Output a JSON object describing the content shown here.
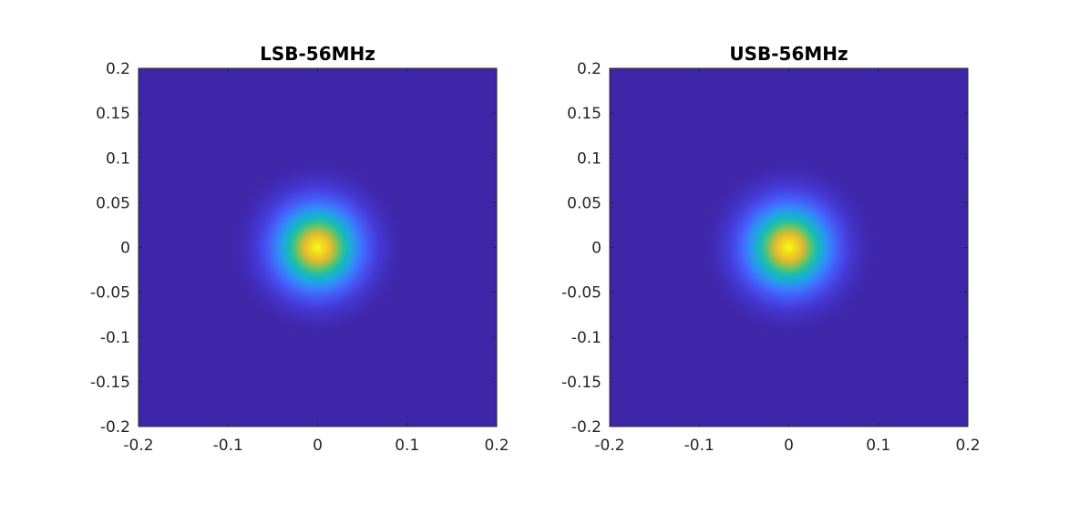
{
  "chart_data": [
    {
      "type": "heatmap",
      "title": "LSB-56MHz",
      "xlim": [
        -0.2,
        0.2
      ],
      "ylim": [
        -0.2,
        0.2
      ],
      "xticks": [
        -0.2,
        -0.1,
        0,
        0.1,
        0.2
      ],
      "xtick_labels": [
        "-0.2",
        "-0.1",
        "0",
        "0.1",
        "0.2"
      ],
      "yticks": [
        0.2,
        0.15,
        0.1,
        0.05,
        0,
        -0.05,
        -0.1,
        -0.15,
        -0.2
      ],
      "ytick_labels": [
        "0.2",
        "0.15",
        "0.1",
        "0.05",
        "0",
        "-0.05",
        "-0.1",
        "-0.15",
        "-0.2"
      ],
      "colormap": "parula",
      "peak": {
        "x": 0,
        "y": 0
      },
      "spot_sigma": 0.032,
      "grid": false
    },
    {
      "type": "heatmap",
      "title": "USB-56MHz",
      "xlim": [
        -0.2,
        0.2
      ],
      "ylim": [
        -0.2,
        0.2
      ],
      "xticks": [
        -0.2,
        -0.1,
        0,
        0.1,
        0.2
      ],
      "xtick_labels": [
        "-0.2",
        "-0.1",
        "0",
        "0.1",
        "0.2"
      ],
      "yticks": [
        0.2,
        0.15,
        0.1,
        0.05,
        0,
        -0.05,
        -0.1,
        -0.15,
        -0.2
      ],
      "ytick_labels": [
        "0.2",
        "0.15",
        "0.1",
        "0.05",
        "0",
        "-0.05",
        "-0.1",
        "-0.15",
        "-0.2"
      ],
      "colormap": "parula",
      "peak": {
        "x": 0,
        "y": 0
      },
      "spot_sigma": 0.032,
      "grid": false
    }
  ],
  "colors": {
    "background_field": "#3e26a8",
    "mid_ring": "#2ab0c0",
    "peak_core": "#f9fb0e",
    "axis_line": "#262626"
  }
}
